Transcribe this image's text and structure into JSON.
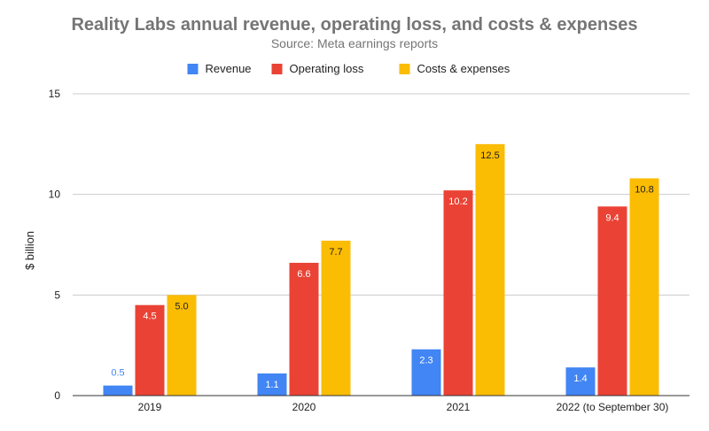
{
  "chart_data": {
    "type": "bar",
    "title": "Reality Labs annual revenue, operating loss, and costs & expenses",
    "subtitle": "Source: Meta earnings reports",
    "xlabel": "",
    "ylabel": "$ billion",
    "ylim": [
      0,
      15
    ],
    "yticks": [
      0,
      5,
      10,
      15
    ],
    "grid": true,
    "legend_position": "top-center",
    "categories": [
      "2019",
      "2020",
      "2021",
      "2022 (to September 30)"
    ],
    "series": [
      {
        "name": "Revenue",
        "color": "#4285F4",
        "values": [
          0.5,
          1.1,
          2.3,
          1.4
        ],
        "labels": [
          "0.5",
          "1.1",
          "2.3",
          "1.4"
        ]
      },
      {
        "name": "Operating loss",
        "color": "#EA4335",
        "values": [
          4.5,
          6.6,
          10.2,
          9.4
        ],
        "labels": [
          "4.5",
          "6.6",
          "10.2",
          "9.4"
        ]
      },
      {
        "name": "Costs & expenses",
        "color": "#FBBC04",
        "values": [
          5.0,
          7.7,
          12.5,
          10.8
        ],
        "labels": [
          "5.0",
          "7.7",
          "12.5",
          "10.8"
        ]
      }
    ]
  }
}
